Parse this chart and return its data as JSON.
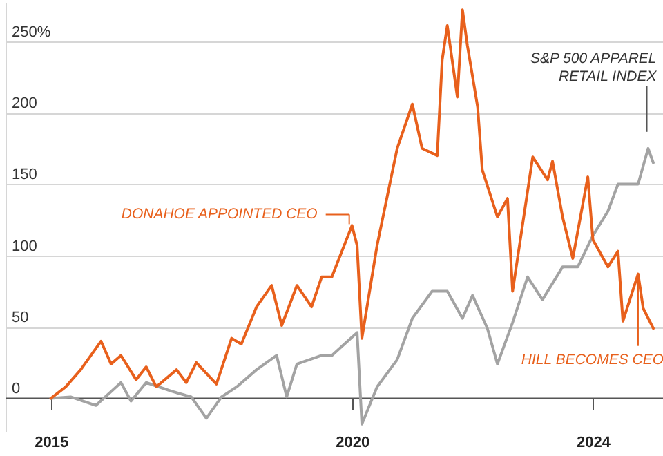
{
  "chart_data": {
    "type": "line",
    "xlim": [
      "2014-04",
      "2025-03"
    ],
    "xticks": [
      {
        "value": "2015",
        "label": "2015"
      },
      {
        "value": "2020",
        "label": "2020"
      },
      {
        "value": "2024",
        "label": "2024"
      }
    ],
    "ylim": [
      -23,
      277
    ],
    "yticks": [
      0,
      50,
      100,
      150,
      200,
      {
        "value": 250,
        "label": "250%"
      }
    ],
    "grid": "y",
    "legend": false,
    "line_style": "solid",
    "marker": "none",
    "annotations": [
      {
        "text": "DONAHOE APPOINTED CEO",
        "x": "2020-01",
        "y": 121
      },
      {
        "text": "HILL BECOMES CEO",
        "x": "2024-10",
        "y": 87
      }
    ],
    "series": [
      {
        "name": "S&P 500 APPAREL RETAIL INDEX",
        "color": "#a3a3a3",
        "x": [
          "2015-01",
          "2015-05",
          "2015-10",
          "2016-03",
          "2016-05",
          "2016-08",
          "2017-01",
          "2017-05",
          "2017-08",
          "2017-11",
          "2018-02",
          "2018-06",
          "2018-10",
          "2018-12",
          "2019-02",
          "2019-07",
          "2019-09",
          "2020-02",
          "2020-03",
          "2020-06",
          "2020-10",
          "2021-01",
          "2021-05",
          "2021-08",
          "2021-11",
          "2022-01",
          "2022-04",
          "2022-06",
          "2022-09",
          "2022-12",
          "2023-03",
          "2023-07",
          "2023-10",
          "2024-01",
          "2024-04",
          "2024-06",
          "2024-10",
          "2024-12",
          "2025-01"
        ],
        "values": [
          0,
          1,
          -5,
          11,
          -2,
          11,
          5,
          1,
          -14,
          1,
          8,
          20,
          30,
          1,
          24,
          30,
          30,
          46,
          -18,
          8,
          27,
          56,
          75,
          75,
          56,
          72,
          49,
          24,
          53,
          85,
          69,
          92,
          92,
          114,
          131,
          150,
          150,
          175,
          165
        ]
      },
      {
        "color": "#e8601c",
        "x": [
          "2015-01",
          "2015-04",
          "2015-07",
          "2015-11",
          "2016-01",
          "2016-03",
          "2016-06",
          "2016-08",
          "2016-10",
          "2017-02",
          "2017-04",
          "2017-06",
          "2017-10",
          "2018-01",
          "2018-03",
          "2018-06",
          "2018-09",
          "2018-11",
          "2019-02",
          "2019-05",
          "2019-07",
          "2019-09",
          "2020-01",
          "2020-02",
          "2020-03",
          "2020-06",
          "2020-10",
          "2021-01",
          "2021-03",
          "2021-06",
          "2021-07",
          "2021-08",
          "2021-10",
          "2021-11",
          "2021-12",
          "2022-02",
          "2022-03",
          "2022-06",
          "2022-08",
          "2022-09",
          "2023-01",
          "2023-04",
          "2023-05",
          "2023-07",
          "2023-09",
          "2023-12",
          "2024-01",
          "2024-04",
          "2024-06",
          "2024-07",
          "2024-10",
          "2024-11",
          "2025-01"
        ],
        "values": [
          0,
          8,
          20,
          40,
          24,
          30,
          13,
          22,
          8,
          20,
          11,
          25,
          10,
          42,
          38,
          64,
          79,
          51,
          79,
          64,
          85,
          85,
          121,
          107,
          42,
          107,
          175,
          206,
          175,
          170,
          237,
          261,
          211,
          272,
          247,
          204,
          160,
          127,
          140,
          75,
          169,
          153,
          166,
          127,
          98,
          155,
          111,
          92,
          103,
          54,
          87,
          63,
          49
        ]
      }
    ]
  }
}
